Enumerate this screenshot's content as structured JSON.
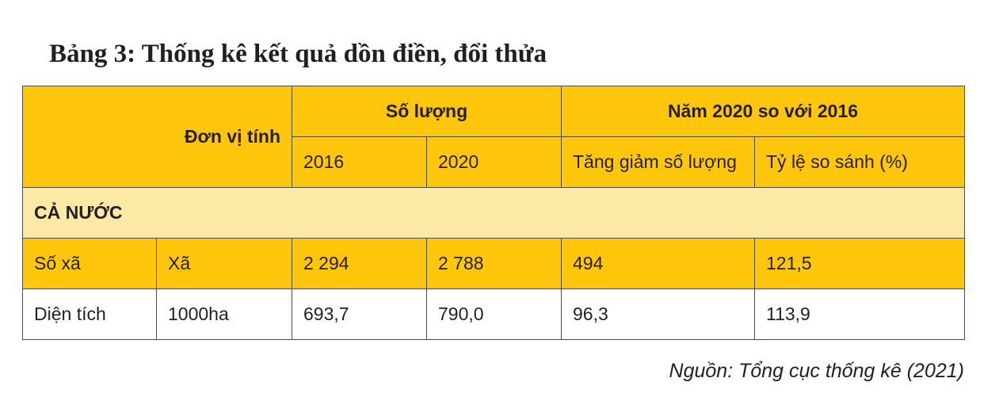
{
  "title": "Bảng 3: Thống kê kết quả dồn điền, đổi thửa",
  "table": {
    "header": {
      "unit": "Đơn vị tính",
      "group1": "Số lượng",
      "group2": "Năm 2020 so với 2016",
      "columns": [
        "2016",
        "2020",
        "Tăng giảm số lượng",
        "Tỷ lệ so sánh (%)"
      ]
    },
    "section": "CẢ NƯỚC",
    "rows": [
      [
        "Số xã",
        "Xã",
        "2 294",
        "2 788",
        "494",
        "121,5"
      ],
      [
        "Diện tích",
        "1000ha",
        "693,7",
        "790,0",
        "96,3",
        "113,9"
      ]
    ]
  },
  "source": "Nguồn: Tổng cục thống kê (2021)"
}
